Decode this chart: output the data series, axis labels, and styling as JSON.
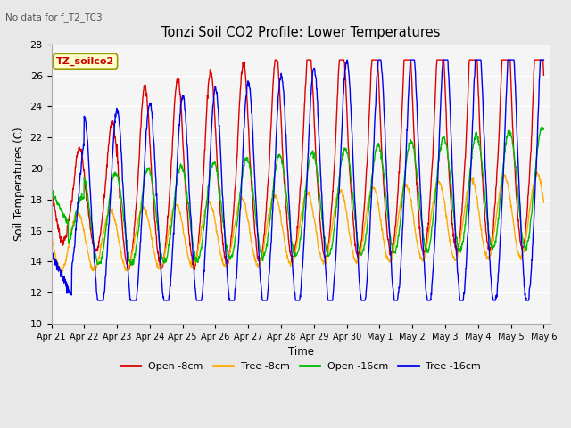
{
  "title": "Tonzi Soil CO2 Profile: Lower Temperatures",
  "subtitle": "No data for f_T2_TC3",
  "xlabel": "Time",
  "ylabel": "Soil Temperatures (C)",
  "ylim": [
    10,
    28
  ],
  "background_color": "#f0f0f0",
  "plot_bg_color": "#f0f0f0",
  "legend_box_color": "#ffffcc",
  "legend_box_edge": "#999900",
  "legend_label": "TZ_soilco2",
  "series": [
    {
      "name": "Open -8cm",
      "color": "#dd0000"
    },
    {
      "name": "Tree -8cm",
      "color": "#ffaa00"
    },
    {
      "name": "Open -16cm",
      "color": "#00bb00"
    },
    {
      "name": "Tree -16cm",
      "color": "#0000ee"
    }
  ],
  "xtick_labels": [
    "Apr 21",
    "Apr 22",
    "Apr 23",
    "Apr 24",
    "Apr 25",
    "Apr 26",
    "Apr 27",
    "Apr 28",
    "Apr 29",
    "Apr 30",
    "May 1",
    "May 2",
    "May 3",
    "May 4",
    "May 5",
    "May 6"
  ],
  "ytick_labels": [
    10,
    12,
    14,
    16,
    18,
    20,
    22,
    24,
    26,
    28
  ],
  "n_points": 1440,
  "n_days": 15
}
